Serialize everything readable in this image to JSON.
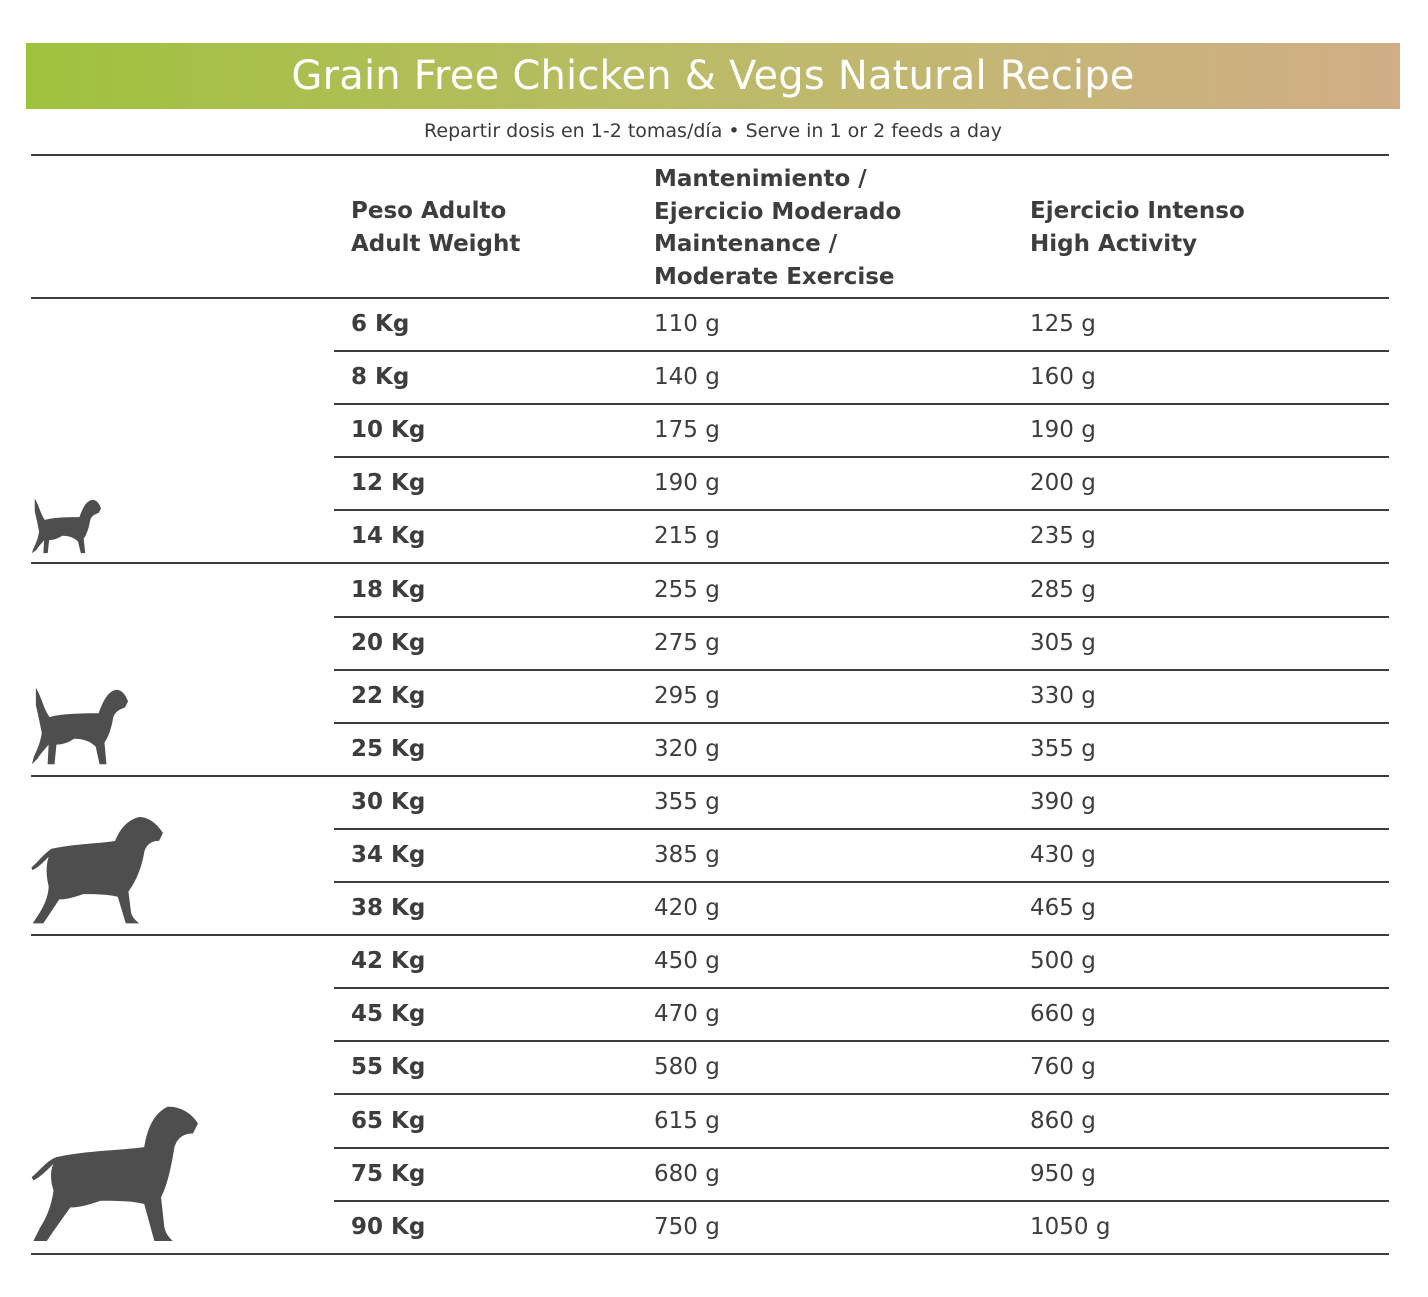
{
  "title": "Grain Free Chicken & Vegs Natural Recipe",
  "subtitle": "Repartir dosis en 1-2 tomas/día • Serve in 1 or 2 feeds a day",
  "headers": {
    "weight": [
      "Peso Adulto",
      "Adult Weight"
    ],
    "maintenance": [
      "Mantenimiento /",
      "Ejercicio Moderado",
      "Maintenance /",
      "Moderate Exercise"
    ],
    "high": [
      "Ejercicio Intenso",
      "High Activity"
    ]
  },
  "colors": {
    "banner_start": "#9fc23d",
    "banner_end": "#d1ae86",
    "text": "#3d3d3d",
    "dog": "#4e4e4e"
  },
  "icons": [
    "small-dog-icon",
    "medium-dog-icon",
    "large-dog-icon",
    "giant-dog-icon"
  ],
  "rows": [
    {
      "weight": "6 Kg",
      "maintenance": "110 g",
      "high": "125 g"
    },
    {
      "weight": "8 Kg",
      "maintenance": "140 g",
      "high": "160 g"
    },
    {
      "weight": "10 Kg",
      "maintenance": "175 g",
      "high": "190 g"
    },
    {
      "weight": "12 Kg",
      "maintenance": "190 g",
      "high": "200 g"
    },
    {
      "weight": "14 Kg",
      "maintenance": "215 g",
      "high": "235 g"
    },
    {
      "weight": "18 Kg",
      "maintenance": "255 g",
      "high": "285 g"
    },
    {
      "weight": "20 Kg",
      "maintenance": "275 g",
      "high": "305 g"
    },
    {
      "weight": "22 Kg",
      "maintenance": "295 g",
      "high": "330 g"
    },
    {
      "weight": "25 Kg",
      "maintenance": "320 g",
      "high": "355 g"
    },
    {
      "weight": "30 Kg",
      "maintenance": "355 g",
      "high": "390 g"
    },
    {
      "weight": "34 Kg",
      "maintenance": "385 g",
      "high": "430 g"
    },
    {
      "weight": "38 Kg",
      "maintenance": "420 g",
      "high": "465 g"
    },
    {
      "weight": "42 Kg",
      "maintenance": "450 g",
      "high": "500 g"
    },
    {
      "weight": "45 Kg",
      "maintenance": "470 g",
      "high": "660 g"
    },
    {
      "weight": "55 Kg",
      "maintenance": "580 g",
      "high": "760 g"
    },
    {
      "weight": "65 Kg",
      "maintenance": "615 g",
      "high": "860 g"
    },
    {
      "weight": "75 Kg",
      "maintenance": "680 g",
      "high": "950 g"
    },
    {
      "weight": "90 Kg",
      "maintenance": "750 g",
      "high": "1050 g"
    }
  ]
}
